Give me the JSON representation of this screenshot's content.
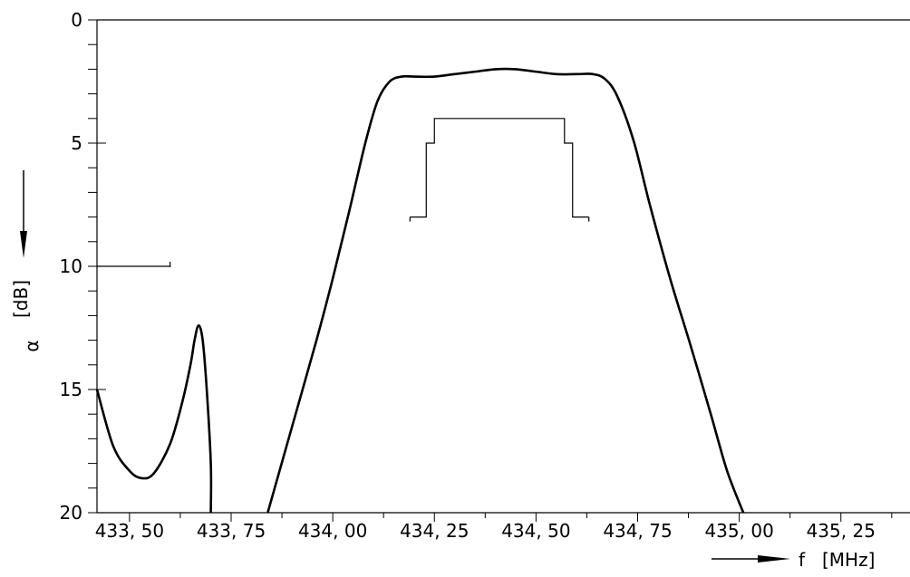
{
  "chart_data": {
    "type": "line",
    "title": "",
    "xlabel": "f",
    "xunit": "[MHz]",
    "ylabel": "α",
    "yunit": "[dB]",
    "y_inverted": true,
    "xlim": [
      433.42,
      435.42
    ],
    "ylim": [
      0,
      20
    ],
    "x_ticks": [
      433.5,
      433.75,
      434.0,
      434.25,
      434.5,
      434.75,
      435.0,
      435.25
    ],
    "x_tick_labels": [
      "433, 50",
      "433, 75",
      "434, 00",
      "434, 25",
      "434, 50",
      "434, 75",
      "435, 00",
      "435, 25"
    ],
    "y_ticks": [
      0,
      5,
      10,
      15,
      20
    ],
    "y_tick_labels": [
      "0",
      "5",
      "10",
      "15",
      "20"
    ],
    "series": [
      {
        "values": [
          [
            433.42,
            15.0
          ],
          [
            433.46,
            17.3
          ],
          [
            433.5,
            18.3
          ],
          [
            433.53,
            18.6
          ],
          [
            433.56,
            18.4
          ],
          [
            433.6,
            17.2
          ],
          [
            433.63,
            15.5
          ],
          [
            433.65,
            14.0
          ],
          [
            433.66,
            13.0
          ],
          [
            433.67,
            12.4
          ],
          [
            433.68,
            13.0
          ],
          [
            433.69,
            15.0
          ],
          [
            433.7,
            18.0
          ],
          [
            433.7,
            20.0
          ]
        ]
      },
      {
        "values": [
          [
            433.84,
            20.0
          ],
          [
            433.9,
            16.5
          ],
          [
            433.96,
            13.0
          ],
          [
            434.0,
            10.5
          ],
          [
            434.04,
            7.8
          ],
          [
            434.08,
            5.0
          ],
          [
            434.11,
            3.3
          ],
          [
            434.14,
            2.5
          ],
          [
            434.17,
            2.3
          ],
          [
            434.2,
            2.3
          ],
          [
            434.25,
            2.3
          ],
          [
            434.3,
            2.2
          ],
          [
            434.35,
            2.1
          ],
          [
            434.4,
            2.0
          ],
          [
            434.45,
            2.0
          ],
          [
            434.5,
            2.1
          ],
          [
            434.55,
            2.2
          ],
          [
            434.6,
            2.2
          ],
          [
            434.64,
            2.2
          ],
          [
            434.67,
            2.4
          ],
          [
            434.7,
            3.1
          ],
          [
            434.74,
            4.9
          ],
          [
            434.78,
            7.5
          ],
          [
            434.83,
            10.5
          ],
          [
            434.88,
            13.2
          ],
          [
            434.93,
            16.0
          ],
          [
            434.97,
            18.3
          ],
          [
            435.01,
            20.0
          ]
        ]
      }
    ],
    "mask": [
      {
        "x1": 433.42,
        "x2": 433.6,
        "y": 10.0
      }
    ],
    "passband_tolerance": [
      [
        434.19,
        8.0
      ],
      [
        434.23,
        8.0
      ],
      [
        434.23,
        5.0
      ],
      [
        434.25,
        5.0
      ],
      [
        434.25,
        4.0
      ],
      [
        434.57,
        4.0
      ],
      [
        434.57,
        5.0
      ],
      [
        434.59,
        5.0
      ],
      [
        434.59,
        8.0
      ],
      [
        434.63,
        8.0
      ]
    ],
    "grid": false
  }
}
